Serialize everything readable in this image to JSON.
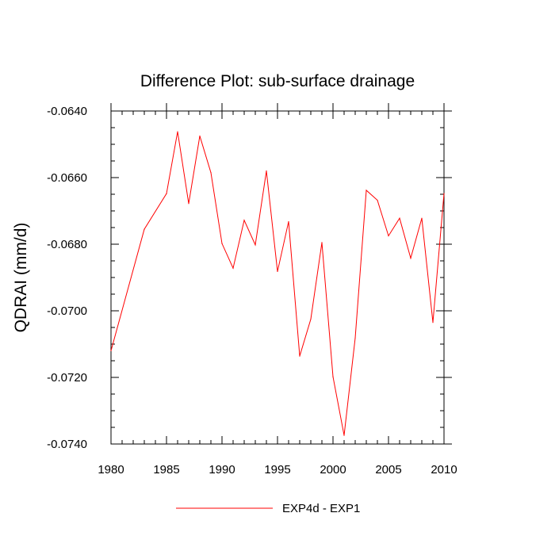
{
  "chart_data": {
    "type": "line",
    "title": "Difference Plot: sub-surface drainage",
    "xlabel": "",
    "ylabel": "QDRAI  (mm/d)",
    "xlim": [
      1980,
      2010
    ],
    "ylim": [
      -0.074,
      -0.064
    ],
    "x_ticks": [
      "1980",
      "1985",
      "1990",
      "1995",
      "2000",
      "2005",
      "2010"
    ],
    "y_ticks": [
      "-0.0640",
      "-0.0660",
      "-0.0680",
      "-0.0700",
      "-0.0720",
      "-0.0740"
    ],
    "x_tick_values": [
      1980,
      1985,
      1990,
      1995,
      2000,
      2005,
      2010
    ],
    "y_tick_values": [
      -0.064,
      -0.066,
      -0.068,
      -0.07,
      -0.072,
      -0.074
    ],
    "grid": false,
    "legend_position": "bottom-center",
    "series": [
      {
        "name": "EXP4d - EXP1",
        "color": "#ff0000",
        "x": [
          1980,
          1983,
          1985,
          1986,
          1987,
          1988,
          1989,
          1990,
          1991,
          1992,
          1993,
          1994,
          1995,
          1996,
          1997,
          1998,
          1999,
          2000,
          2001,
          2002,
          2003,
          2004,
          2005,
          2006,
          2007,
          2008,
          2009,
          2010
        ],
        "values": [
          -0.0712,
          -0.06755,
          -0.06648,
          -0.06462,
          -0.06678,
          -0.06475,
          -0.06585,
          -0.06798,
          -0.06872,
          -0.06728,
          -0.06802,
          -0.0658,
          -0.06882,
          -0.06732,
          -0.07136,
          -0.07025,
          -0.06795,
          -0.07198,
          -0.07374,
          -0.07082,
          -0.06638,
          -0.06668,
          -0.06775,
          -0.06722,
          -0.06842,
          -0.06722,
          -0.07035,
          -0.06648
        ]
      }
    ]
  }
}
